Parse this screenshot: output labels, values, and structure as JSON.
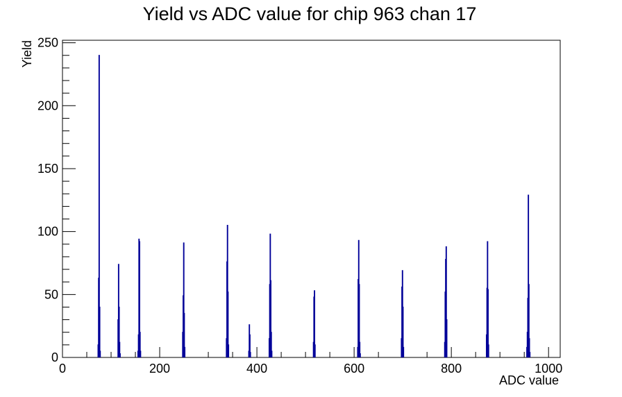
{
  "chart_data": {
    "type": "bar",
    "title": "Yield vs ADC value for chip 963 chan 17",
    "xlabel": "ADC value",
    "ylabel": "Yield",
    "xlim": [
      0,
      1024
    ],
    "ylim": [
      0,
      252
    ],
    "x_ticks": [
      0,
      200,
      400,
      600,
      800,
      1000
    ],
    "y_ticks": [
      0,
      50,
      100,
      150,
      200,
      250
    ],
    "legend": "none",
    "grid": false,
    "series": [
      {
        "color": "#000099",
        "x": [
          73,
          74,
          75,
          76,
          77,
          114,
          115,
          116,
          117,
          118,
          155,
          156,
          157,
          158,
          159,
          160,
          247,
          248,
          249,
          250,
          251,
          337,
          338,
          339,
          340,
          341,
          383,
          384,
          385,
          386,
          425,
          426,
          427,
          428,
          429,
          430,
          516,
          517,
          518,
          519,
          607,
          608,
          609,
          610,
          611,
          612,
          697,
          698,
          699,
          700,
          701,
          786,
          787,
          788,
          789,
          790,
          872,
          873,
          874,
          875,
          876,
          955,
          956,
          957,
          958,
          959,
          960,
          961
        ],
        "values": [
          10,
          63,
          240,
          40,
          5,
          30,
          74,
          40,
          12,
          3,
          5,
          18,
          94,
          92,
          20,
          5,
          20,
          49,
          91,
          35,
          8,
          15,
          76,
          105,
          52,
          10,
          5,
          26,
          18,
          4,
          15,
          58,
          98,
          61,
          20,
          5,
          12,
          48,
          53,
          10,
          8,
          62,
          93,
          58,
          12,
          3,
          15,
          56,
          69,
          40,
          8,
          12,
          52,
          78,
          88,
          30,
          18,
          55,
          92,
          54,
          10,
          8,
          20,
          47,
          129,
          58,
          15,
          4
        ]
      }
    ]
  }
}
